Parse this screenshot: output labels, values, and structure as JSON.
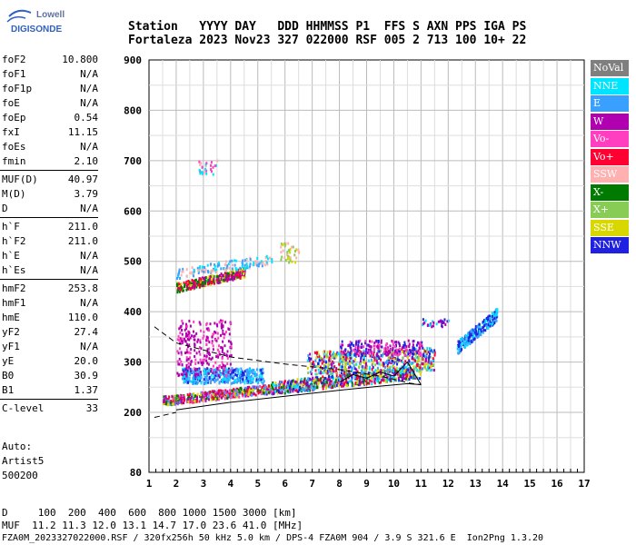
{
  "logo": {
    "line1": "Lowell",
    "line2": "DIGISONDE"
  },
  "header": {
    "line1": "Station   YYYY DAY   DDD HHMMSS P1  FFS S AXN PPS IGA PS",
    "line2": "Fortaleza 2023 Nov23 327 022000 RSF 005 2 713 100 10+ 22"
  },
  "params": [
    {
      "name": "foF2",
      "value": "10.800"
    },
    {
      "name": "foF1",
      "value": "N/A"
    },
    {
      "name": "foF1p",
      "value": "N/A"
    },
    {
      "name": "foE",
      "value": "N/A"
    },
    {
      "name": "foEp",
      "value": "0.54"
    },
    {
      "name": "fxI",
      "value": "11.15"
    },
    {
      "name": "foEs",
      "value": "N/A"
    },
    {
      "name": "fmin",
      "value": "2.10"
    },
    {
      "name": "MUF(D)",
      "value": "40.97"
    },
    {
      "name": "M(D)",
      "value": "3.79"
    },
    {
      "name": "D",
      "value": "N/A"
    },
    {
      "name": "h`F",
      "value": "211.0"
    },
    {
      "name": "h`F2",
      "value": "211.0"
    },
    {
      "name": "h`E",
      "value": "N/A"
    },
    {
      "name": "h`Es",
      "value": "N/A"
    },
    {
      "name": "hmF2",
      "value": "253.8"
    },
    {
      "name": "hmF1",
      "value": "N/A"
    },
    {
      "name": "hmE",
      "value": "110.0"
    },
    {
      "name": "yF2",
      "value": "27.4"
    },
    {
      "name": "yF1",
      "value": "N/A"
    },
    {
      "name": "yE",
      "value": "20.0"
    },
    {
      "name": "B0",
      "value": "30.9"
    },
    {
      "name": "B1",
      "value": "1.37"
    },
    {
      "name": "C-level",
      "value": "33"
    }
  ],
  "auto": {
    "label": "Auto:",
    "artist": "Artist5",
    "code": "500200"
  },
  "legend": [
    {
      "label": "NoVal",
      "color": "#7f7f7f"
    },
    {
      "label": "NNE",
      "color": "#00e5ff"
    },
    {
      "label": "E",
      "color": "#3aa0ff"
    },
    {
      "label": "W",
      "color": "#b000b0"
    },
    {
      "label": "Vo-",
      "color": "#ff3fbf"
    },
    {
      "label": "Vo+",
      "color": "#ff0033"
    },
    {
      "label": "SSW",
      "color": "#ffb0b0"
    },
    {
      "label": "X-",
      "color": "#007a00"
    },
    {
      "label": "X+",
      "color": "#88cc55"
    },
    {
      "label": "SSE",
      "color": "#d8d800"
    },
    {
      "label": "NNW",
      "color": "#2020e0"
    }
  ],
  "axes": {
    "y_ticks": [
      "900",
      "800",
      "700",
      "600",
      "500",
      "400",
      "300",
      "200",
      "80"
    ],
    "x_ticks": [
      "1",
      "2",
      "3",
      "4",
      "5",
      "6",
      "7",
      "8",
      "9",
      "10",
      "11",
      "12",
      "13",
      "14",
      "15",
      "16",
      "17"
    ]
  },
  "footer": {
    "line1": "D     100  200  400  600  800 1000 1500 3000 [km]",
    "line2": "MUF  11.2 11.3 12.0 13.1 14.7 17.0 23.6 41.0 [MHz]",
    "line3": "FZA0M_2023327022000.RSF / 320fx256h 50 kHz 5.0 km / DPS-4 FZA0M 904 / 3.9 S 321.6 E  Ion2Png 1.3.20"
  }
}
